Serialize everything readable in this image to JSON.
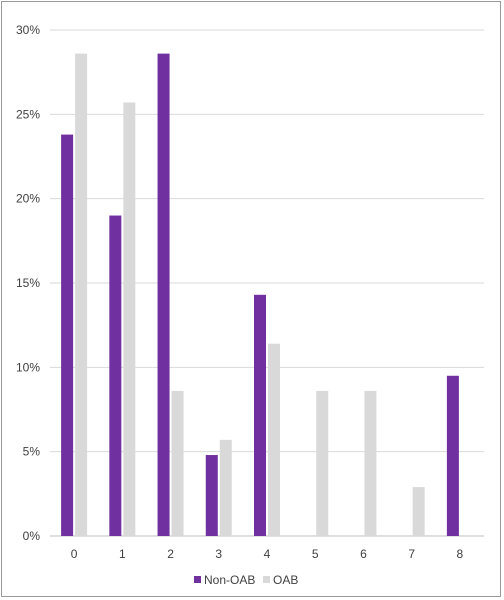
{
  "chart_data": {
    "type": "bar",
    "title": "",
    "xlabel": "",
    "ylabel": "",
    "categories": [
      "0",
      "1",
      "2",
      "3",
      "4",
      "5",
      "6",
      "7",
      "8"
    ],
    "series": [
      {
        "name": "Non-OAB",
        "color": "#7030a0",
        "values": [
          23.8,
          19.0,
          28.6,
          4.8,
          14.3,
          0,
          0,
          0,
          9.5
        ]
      },
      {
        "name": "OAB",
        "color": "#d9d9d9",
        "values": [
          28.6,
          25.7,
          8.6,
          5.7,
          11.4,
          8.6,
          8.6,
          2.9,
          0
        ]
      }
    ],
    "ylim": [
      0,
      30
    ],
    "yticks": [
      {
        "value": 0,
        "label": "0%"
      },
      {
        "value": 5,
        "label": "5%"
      },
      {
        "value": 10,
        "label": "10%"
      },
      {
        "value": 15,
        "label": "15%"
      },
      {
        "value": 20,
        "label": "20%"
      },
      {
        "value": 25,
        "label": "25%"
      },
      {
        "value": 30,
        "label": "30%"
      }
    ],
    "grid": true,
    "legend": "bottom"
  }
}
